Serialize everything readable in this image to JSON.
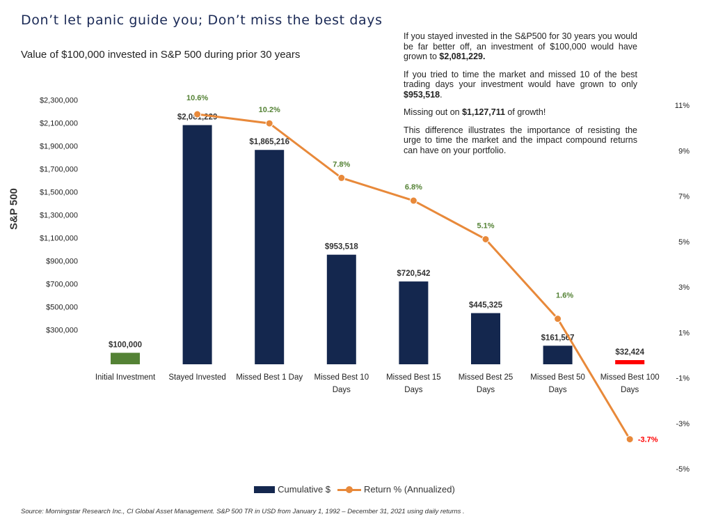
{
  "title": "Don’t let panic guide you; Don’t miss the best days",
  "subtitle": "Value of $100,000 invested in S&P 500 during prior 30 years",
  "text": {
    "p1_pre": "If you stayed invested in the S&P500 for 30 years you would be far better off, an investment of $100,000 would have grown to ",
    "p1_bold": "$2,081,229.",
    "p2_pre": "If you tried to time the market and missed 10 of the best trading days your investment would have grown to only ",
    "p2_bold": "$953,518",
    "p2_post": ".",
    "p3_pre": "Missing out on ",
    "p3_bold": "$1,127,711",
    "p3_post": " of growth!",
    "p4": "This difference illustrates the importance of resisting the urge to time the market and the impact compound returns can have on your portfolio."
  },
  "legend": {
    "bar": "Cumulative $",
    "line": "Return % (Annualized)"
  },
  "source": "Source: Morningstar Research Inc., CI Global Asset Management. S&P 500 TR in USD from January  1, 1992 – December 31, 2021 using daily returns .",
  "colors": {
    "bar": "#14274e",
    "initial_bar": "#548235",
    "missed_100_bar": "#ff0000",
    "line": "#e8893a",
    "positive_label": "#548235",
    "negative_label": "#ff0000"
  },
  "chart_data": {
    "type": "bar",
    "ylabel": "S&P 500",
    "categories": [
      [
        "Initial Investment"
      ],
      [
        "Stayed Invested"
      ],
      [
        "Missed Best 1 Day"
      ],
      [
        "Missed Best 10",
        "Days"
      ],
      [
        "Missed Best 15",
        "Days"
      ],
      [
        "Missed Best 25",
        "Days"
      ],
      [
        "Missed Best 50",
        "Days"
      ],
      [
        "Missed Best 100",
        "Days"
      ]
    ],
    "series": [
      {
        "name": "Cumulative $",
        "type": "bar",
        "axis": "left",
        "values": [
          100000,
          2081229,
          1865216,
          953518,
          720542,
          445325,
          161567,
          32424
        ],
        "labels": [
          "$100,000",
          "$2,081,229",
          "$1,865,216",
          "$953,518",
          "$720,542",
          "$445,325",
          "$161,567",
          "$32,424"
        ]
      },
      {
        "name": "Return % (Annualized)",
        "type": "line",
        "axis": "right",
        "values": [
          null,
          10.6,
          10.2,
          7.8,
          6.8,
          5.1,
          1.6,
          -3.7
        ],
        "labels": [
          "",
          "10.6%",
          "10.2%",
          "7.8%",
          "6.8%",
          "5.1%",
          "1.6%",
          "-3.7%"
        ]
      }
    ],
    "left_axis": {
      "ticks": [
        300000,
        500000,
        700000,
        900000,
        1100000,
        1300000,
        1500000,
        1700000,
        1900000,
        2100000,
        2300000
      ],
      "tick_labels": [
        "$300,000",
        "$500,000",
        "$700,000",
        "$900,000",
        "$1,100,000",
        "$1,300,000",
        "$1,500,000",
        "$1,700,000",
        "$1,900,000",
        "$2,100,000",
        "$2,300,000"
      ]
    },
    "right_axis": {
      "ticks": [
        -5,
        -3,
        -1,
        1,
        3,
        5,
        7,
        9,
        11
      ],
      "tick_labels": [
        "-5%",
        "-3%",
        "-1%",
        "1%",
        "3%",
        "5%",
        "7%",
        "9%",
        "11%"
      ]
    },
    "grid": false,
    "legend_position": "bottom"
  }
}
